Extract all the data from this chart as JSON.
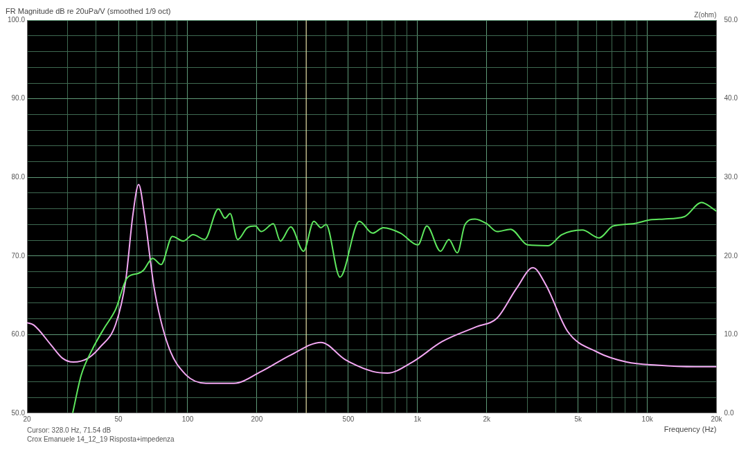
{
  "chart_data": {
    "type": "line",
    "title": "FR Magnitude dB re 20uPa/V (smoothed 1/9 oct)",
    "xlabel": "Frequency (Hz)",
    "y2label": "Z(ohm)",
    "annotations": [
      "Cursor: 328.0 Hz, 71.54 dB",
      "Crox Emanuele 14_12_19 Risposta+impedenza"
    ],
    "log": "x",
    "grid": true,
    "legend": false,
    "xlim": [
      20,
      20000
    ],
    "xticks": [
      20,
      {
        "value": 30,
        "label": null
      },
      {
        "value": 40,
        "label": null
      },
      50,
      {
        "value": 60,
        "label": null
      },
      {
        "value": 70,
        "label": null
      },
      {
        "value": 80,
        "label": null
      },
      {
        "value": 90,
        "label": null
      },
      100,
      200,
      {
        "value": 300,
        "label": null
      },
      {
        "value": 400,
        "label": null
      },
      500,
      {
        "value": 600,
        "label": null
      },
      {
        "value": 700,
        "label": null
      },
      {
        "value": 800,
        "label": null
      },
      {
        "value": 900,
        "label": null
      },
      {
        "value": 1000,
        "label": "1k"
      },
      {
        "value": 2000,
        "label": "2k"
      },
      {
        "value": 3000,
        "label": null
      },
      {
        "value": 4000,
        "label": null
      },
      {
        "value": 5000,
        "label": "5k"
      },
      {
        "value": 6000,
        "label": null
      },
      {
        "value": 7000,
        "label": null
      },
      {
        "value": 8000,
        "label": null
      },
      {
        "value": 9000,
        "label": null
      },
      {
        "value": 10000,
        "label": "10k"
      },
      {
        "value": 20000,
        "label": "20k"
      }
    ],
    "ylim": [
      50,
      100
    ],
    "yticks": [
      {
        "value": 50,
        "label": "50.0"
      },
      {
        "value": 52,
        "label": null
      },
      {
        "value": 54,
        "label": null
      },
      {
        "value": 56,
        "label": null
      },
      {
        "value": 58,
        "label": null
      },
      {
        "value": 60,
        "label": "60.0"
      },
      {
        "value": 62,
        "label": null
      },
      {
        "value": 64,
        "label": null
      },
      {
        "value": 66,
        "label": null
      },
      {
        "value": 68,
        "label": null
      },
      {
        "value": 70,
        "label": "70.0"
      },
      {
        "value": 72,
        "label": null
      },
      {
        "value": 74,
        "label": null
      },
      {
        "value": 76,
        "label": null
      },
      {
        "value": 78,
        "label": null
      },
      {
        "value": 80,
        "label": "80.0"
      },
      {
        "value": 82,
        "label": null
      },
      {
        "value": 84,
        "label": null
      },
      {
        "value": 86,
        "label": null
      },
      {
        "value": 88,
        "label": null
      },
      {
        "value": 90,
        "label": "90.0"
      },
      {
        "value": 92,
        "label": null
      },
      {
        "value": 94,
        "label": null
      },
      {
        "value": 96,
        "label": null
      },
      {
        "value": 98,
        "label": null
      },
      {
        "value": 100,
        "label": "100.0"
      }
    ],
    "y2lim": [
      0,
      50
    ],
    "y2ticks": [
      {
        "value": 0,
        "label": "0.0"
      },
      {
        "value": 10,
        "label": "10.0"
      },
      {
        "value": 20,
        "label": "20.0"
      },
      {
        "value": 30,
        "label": "30.0"
      },
      {
        "value": 40,
        "label": "40.0"
      },
      {
        "value": 50,
        "label": "50.0"
      }
    ],
    "ref_lines": [
      {
        "axis": "x",
        "value": 328,
        "color": "#e8e0a8"
      }
    ],
    "series": [
      {
        "color": "#5ee85e",
        "x": [
          31.6,
          34.4,
          38.6,
          43.3,
          48.6,
          54.5,
          61.2,
          64.3,
          70.4,
          76.6,
          85.8,
          95.8,
          105.5,
          118.6,
          136,
          145.5,
          153,
          165,
          182,
          197,
          209,
          236,
          253,
          281,
          319,
          354,
          380,
          400,
          460,
          558,
          638,
          710,
          844,
          1004,
          1098,
          1260,
          1370,
          1490,
          1610,
          1780,
          2000,
          2220,
          2540,
          3020,
          3700,
          4240,
          5210,
          6170,
          7080,
          8690,
          10300,
          11800,
          14500,
          17200,
          20000
        ],
        "values": [
          50,
          54.8,
          58.2,
          60.8,
          63.2,
          67.2,
          67.8,
          68.2,
          69.7,
          68.9,
          72.5,
          71.9,
          72.7,
          72.1,
          76.0,
          74.8,
          75.4,
          72.1,
          73.6,
          73.8,
          73.1,
          74.1,
          71.9,
          73.7,
          70.6,
          74.4,
          73.6,
          74.0,
          67.3,
          74.4,
          72.9,
          73.6,
          72.9,
          71.4,
          73.8,
          70.6,
          72.1,
          70.4,
          74.0,
          74.7,
          74.1,
          73.1,
          73.4,
          71.4,
          71.3,
          72.7,
          73.3,
          72.3,
          73.8,
          74.1,
          74.6,
          74.7,
          75.0,
          76.8,
          75.7
        ]
      },
      {
        "color": "#f4a8f4",
        "axis": "y2",
        "x": [
          20,
          21.4,
          25.4,
          28.5,
          31.8,
          36.9,
          41.6,
          48.6,
          53.7,
          57.8,
          61.2,
          64.8,
          71.5,
          82,
          98,
          120,
          159,
          209,
          281,
          380,
          485,
          638,
          740,
          950,
          1280,
          1810,
          2220,
          2700,
          3180,
          3620,
          4500,
          6020,
          8130,
          11000,
          16200,
          20000
        ],
        "values": [
          11.5,
          11.2,
          8.7,
          7.0,
          6.5,
          7.0,
          8.4,
          11.3,
          16.8,
          25.3,
          29.1,
          25.3,
          15.9,
          8.7,
          4.9,
          3.8,
          3.8,
          5.3,
          7.4,
          9.0,
          6.8,
          5.3,
          5.1,
          6.5,
          9.1,
          11.0,
          12.1,
          15.9,
          18.5,
          16.3,
          10.4,
          7.8,
          6.5,
          6.1,
          5.9,
          5.9
        ]
      }
    ]
  }
}
